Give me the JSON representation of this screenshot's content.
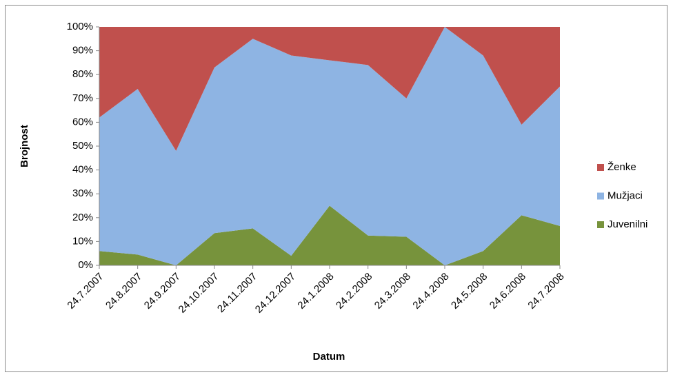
{
  "chart_data": {
    "type": "stacked_area_100",
    "x_label": "Datum",
    "y_label": "Brojnost",
    "categories": [
      "24.7.2007",
      "24.8.2007",
      "24.9.2007",
      "24.10.2007",
      "24.11.2007",
      "24.12.2007",
      "24.1.2008",
      "24.2.2008",
      "24.3.2008",
      "24.4.2008",
      "24.5.2008",
      "24.6.2008",
      "24.7.2008"
    ],
    "series": [
      {
        "name": "Juvenilni",
        "color": "#77933c",
        "values": [
          6,
          4.5,
          0,
          13.5,
          15.5,
          4,
          25,
          12.5,
          12,
          0,
          6,
          21,
          16.5
        ]
      },
      {
        "name": "Mužjaci",
        "color": "#8eb4e3",
        "values": [
          56,
          69.5,
          48,
          69.5,
          79.5,
          84,
          61,
          71.5,
          58,
          100,
          82,
          38,
          58.5
        ]
      },
      {
        "name": "Ženke",
        "color": "#c0504d",
        "values": [
          38,
          26,
          52,
          17,
          5,
          12,
          14,
          16,
          30,
          0,
          12,
          41,
          25
        ]
      }
    ],
    "ylim": [
      0,
      100
    ],
    "yticks": [
      {
        "value": 0,
        "label": "0%"
      },
      {
        "value": 10,
        "label": "10%"
      },
      {
        "value": 20,
        "label": "20%"
      },
      {
        "value": 30,
        "label": "30%"
      },
      {
        "value": 40,
        "label": "40%"
      },
      {
        "value": 50,
        "label": "50%"
      },
      {
        "value": 60,
        "label": "60%"
      },
      {
        "value": 70,
        "label": "70%"
      },
      {
        "value": 80,
        "label": "80%"
      },
      {
        "value": 90,
        "label": "90%"
      },
      {
        "value": 100,
        "label": "100%"
      }
    ],
    "legend": "right"
  }
}
